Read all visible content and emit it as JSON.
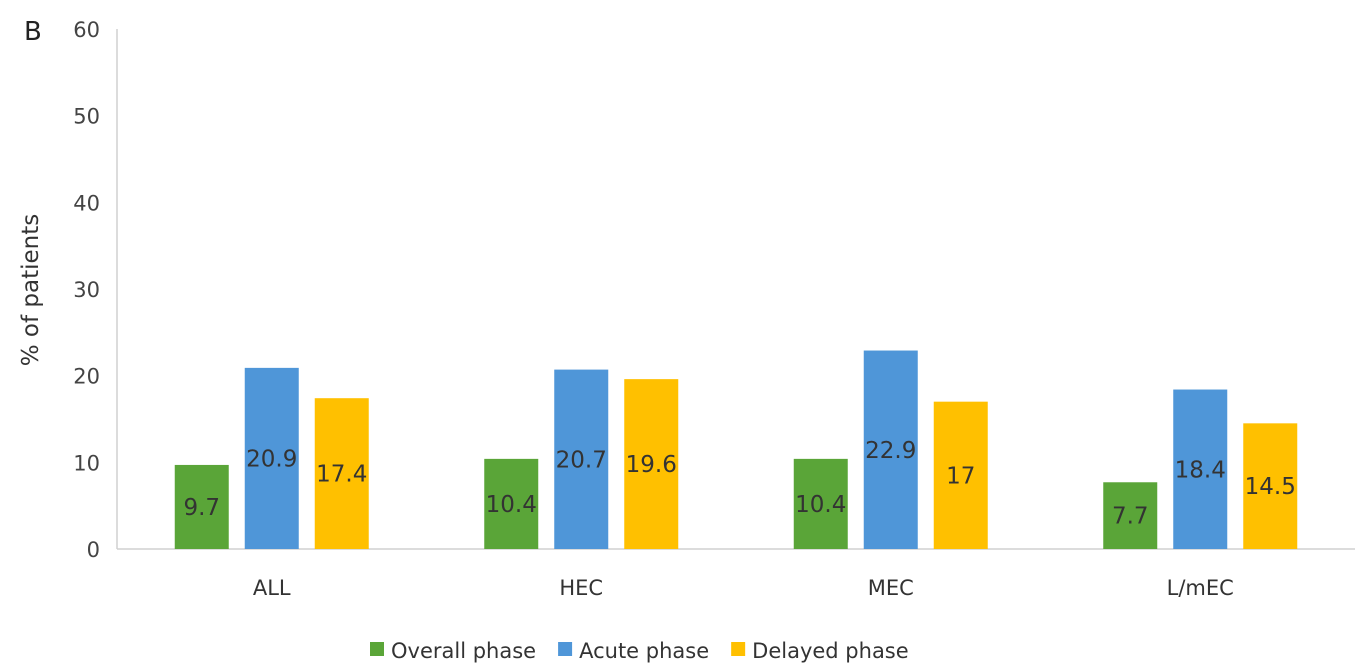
{
  "panel_label": "B",
  "chart_data": {
    "type": "bar",
    "categories": [
      "ALL",
      "HEC",
      "MEC",
      "L/mEC"
    ],
    "series": [
      {
        "name": "Overall phase",
        "color": "#5aa538",
        "values": [
          9.7,
          10.4,
          10.4,
          7.7
        ],
        "labels": [
          "9.7",
          "10.4",
          "10.4",
          "7.7"
        ]
      },
      {
        "name": "Acute phase",
        "color": "#4f96d8",
        "values": [
          20.9,
          20.7,
          22.9,
          18.4
        ],
        "labels": [
          "20.9",
          "20.7",
          "22.9",
          "18.4"
        ]
      },
      {
        "name": "Delayed phase",
        "color": "#ffc000",
        "values": [
          17.4,
          19.6,
          17,
          14.5
        ],
        "labels": [
          "17.4",
          "19.6",
          "17",
          "14.5"
        ]
      }
    ],
    "xlabel": "",
    "ylabel": "% of patients",
    "ylim": [
      0,
      60
    ],
    "yticks": [
      0,
      10,
      20,
      30,
      40,
      50,
      60
    ],
    "grid": false,
    "legend_position": "bottom"
  }
}
